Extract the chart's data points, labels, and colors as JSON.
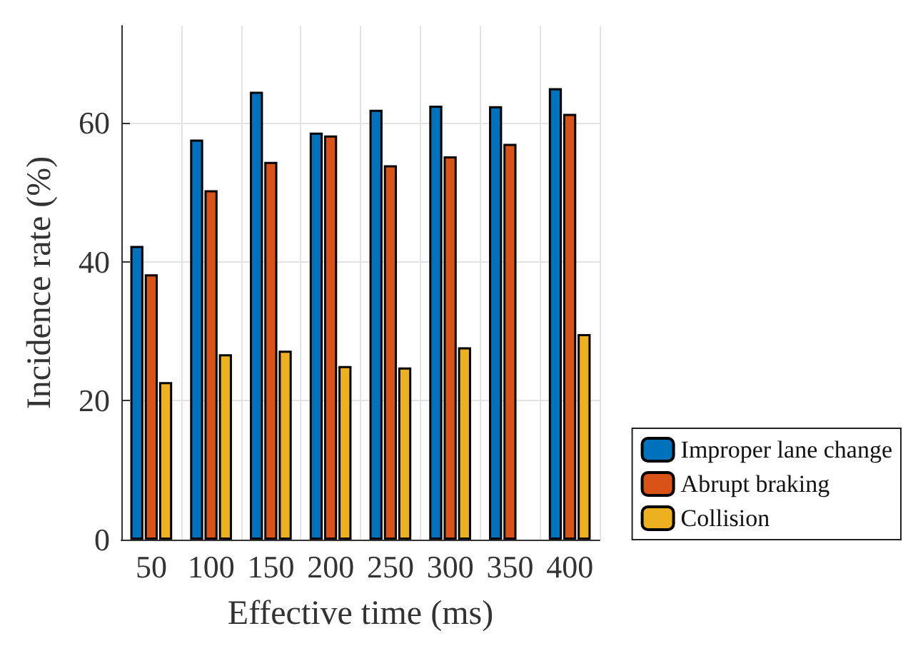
{
  "chart_data": {
    "type": "bar",
    "xlabel": "Effective time (ms)",
    "ylabel": "Incidence rate (%)",
    "categories": [
      "50",
      "100",
      "150",
      "200",
      "250",
      "300",
      "350",
      "400"
    ],
    "series": [
      {
        "name": "Improper lane change",
        "color": "#0072bd",
        "values": [
          42.3,
          57.6,
          64.5,
          58.6,
          61.9,
          62.5,
          62.4,
          65.0
        ]
      },
      {
        "name": "Abrupt braking",
        "color": "#d95319",
        "values": [
          38.2,
          50.3,
          54.4,
          58.2,
          53.9,
          55.2,
          57.0,
          61.3
        ]
      },
      {
        "name": "Collision",
        "color": "#edb120",
        "values": [
          22.7,
          26.7,
          27.2,
          25.0,
          24.8,
          27.7,
          null,
          29.6
        ]
      }
    ],
    "ylim": [
      0,
      74
    ],
    "yticks": [
      0,
      20,
      40,
      60
    ],
    "grid": true,
    "legend": "bottom right"
  }
}
